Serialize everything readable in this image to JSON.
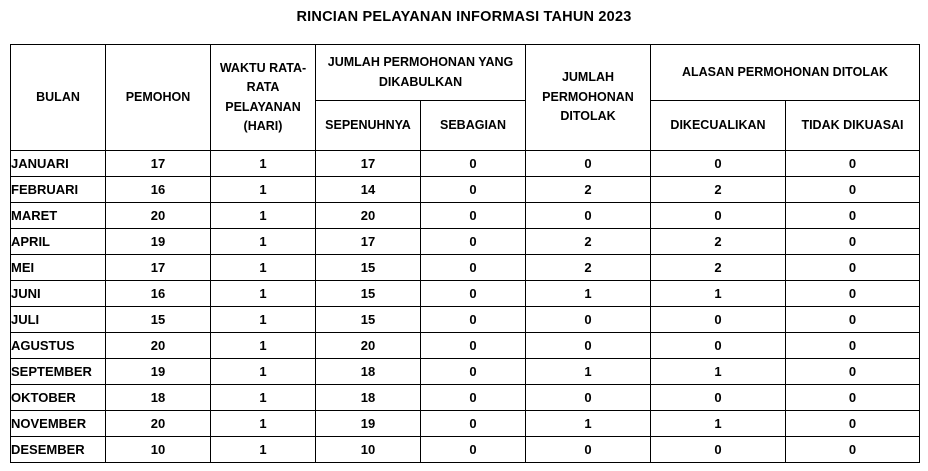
{
  "title": "RINCIAN PELAYANAN INFORMASI TAHUN 2023",
  "colors": {
    "text": "#000000",
    "border": "#000000",
    "background": "#ffffff"
  },
  "table": {
    "column_keys": [
      "bulan",
      "pemohon",
      "waktu",
      "sepenuhnya",
      "sebagian",
      "ditolak",
      "dikecualikan",
      "tidak_dikuasai"
    ],
    "headers": {
      "bulan": "BULAN",
      "pemohon": "PEMOHON",
      "waktu": "WAKTU RATA-RATA PELAYANAN (HARI)",
      "dikabulkan_group": "JUMLAH PERMOHONAN YANG DIKABULKAN",
      "sepenuhnya": "SEPENUHNYA",
      "sebagian": "SEBAGIAN",
      "ditolak": "JUMLAH PERMOHONAN DITOLAK",
      "alasan_group": "ALASAN PERMOHONAN DITOLAK",
      "dikecualikan": "DIKECUALIKAN",
      "tidak_dikuasai": "TIDAK DIKUASAI"
    },
    "rows": [
      {
        "bulan": "JANUARI",
        "pemohon": "17",
        "waktu": "1",
        "sepenuhnya": "17",
        "sebagian": "0",
        "ditolak": "0",
        "dikecualikan": "0",
        "tidak_dikuasai": "0"
      },
      {
        "bulan": "FEBRUARI",
        "pemohon": "16",
        "waktu": "1",
        "sepenuhnya": "14",
        "sebagian": "0",
        "ditolak": "2",
        "dikecualikan": "2",
        "tidak_dikuasai": "0"
      },
      {
        "bulan": "MARET",
        "pemohon": "20",
        "waktu": "1",
        "sepenuhnya": "20",
        "sebagian": "0",
        "ditolak": "0",
        "dikecualikan": "0",
        "tidak_dikuasai": "0"
      },
      {
        "bulan": "APRIL",
        "pemohon": "19",
        "waktu": "1",
        "sepenuhnya": "17",
        "sebagian": "0",
        "ditolak": "2",
        "dikecualikan": "2",
        "tidak_dikuasai": "0"
      },
      {
        "bulan": "MEI",
        "pemohon": "17",
        "waktu": "1",
        "sepenuhnya": "15",
        "sebagian": "0",
        "ditolak": "2",
        "dikecualikan": "2",
        "tidak_dikuasai": "0"
      },
      {
        "bulan": "JUNI",
        "pemohon": "16",
        "waktu": "1",
        "sepenuhnya": "15",
        "sebagian": "0",
        "ditolak": "1",
        "dikecualikan": "1",
        "tidak_dikuasai": "0"
      },
      {
        "bulan": "JULI",
        "pemohon": "15",
        "waktu": "1",
        "sepenuhnya": "15",
        "sebagian": "0",
        "ditolak": "0",
        "dikecualikan": "0",
        "tidak_dikuasai": "0"
      },
      {
        "bulan": "AGUSTUS",
        "pemohon": "20",
        "waktu": "1",
        "sepenuhnya": "20",
        "sebagian": "0",
        "ditolak": "0",
        "dikecualikan": "0",
        "tidak_dikuasai": "0"
      },
      {
        "bulan": "SEPTEMBER",
        "pemohon": "19",
        "waktu": "1",
        "sepenuhnya": "18",
        "sebagian": "0",
        "ditolak": "1",
        "dikecualikan": "1",
        "tidak_dikuasai": "0"
      },
      {
        "bulan": "OKTOBER",
        "pemohon": "18",
        "waktu": "1",
        "sepenuhnya": "18",
        "sebagian": "0",
        "ditolak": "0",
        "dikecualikan": "0",
        "tidak_dikuasai": "0"
      },
      {
        "bulan": "NOVEMBER",
        "pemohon": "20",
        "waktu": "1",
        "sepenuhnya": "19",
        "sebagian": "0",
        "ditolak": "1",
        "dikecualikan": "1",
        "tidak_dikuasai": "0"
      },
      {
        "bulan": "DESEMBER",
        "pemohon": "10",
        "waktu": "1",
        "sepenuhnya": "10",
        "sebagian": "0",
        "ditolak": "0",
        "dikecualikan": "0",
        "tidak_dikuasai": "0"
      }
    ]
  }
}
